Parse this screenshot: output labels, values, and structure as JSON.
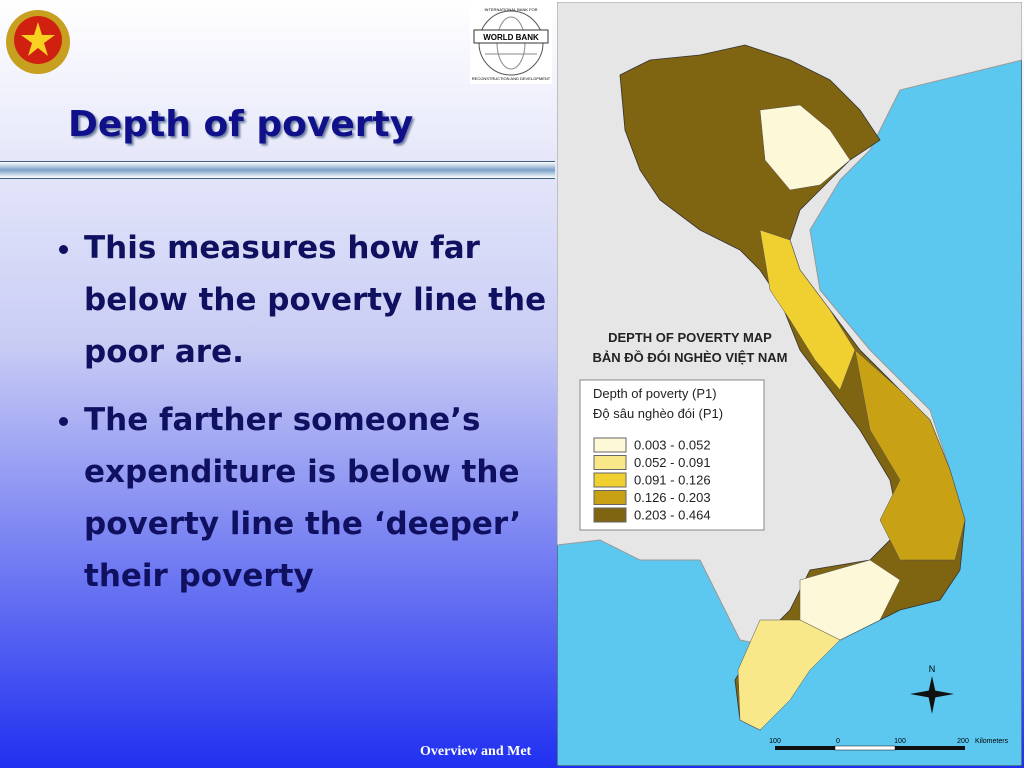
{
  "slide": {
    "title": "Depth of poverty",
    "bullets": [
      "This measures how far below the poverty line the poor are.",
      "The farther someone’s expenditure is below the poverty line the  ‘deeper’ their poverty"
    ],
    "footer": "Overview and Met"
  },
  "logo": {
    "name": "WORLD BANK",
    "ring_top": "INTERNATIONAL BANK FOR",
    "ring_bottom": "RECONSTRUCTION AND DEVELOPMENT"
  },
  "map": {
    "title": "DEPTH OF POVERTY MAP",
    "subtitle": "BẢN ĐỒ ĐÓI NGHÈO VIỆT NAM",
    "legend": {
      "title": "Depth of poverty (P1)",
      "subtitle": "Độ sâu nghèo đói (P1)",
      "items": [
        {
          "label": "0.003 - 0.052",
          "color": "#fdf8d8"
        },
        {
          "label": "0.052 - 0.091",
          "color": "#f8e88a"
        },
        {
          "label": "0.091 - 0.126",
          "color": "#f0d030"
        },
        {
          "label": "0.126 - 0.203",
          "color": "#c8a214"
        },
        {
          "label": "0.203 - 0.464",
          "color": "#7f6411"
        }
      ]
    },
    "north": "N",
    "scale": [
      "100",
      "0",
      "100",
      "200",
      "Kilometers"
    ]
  }
}
